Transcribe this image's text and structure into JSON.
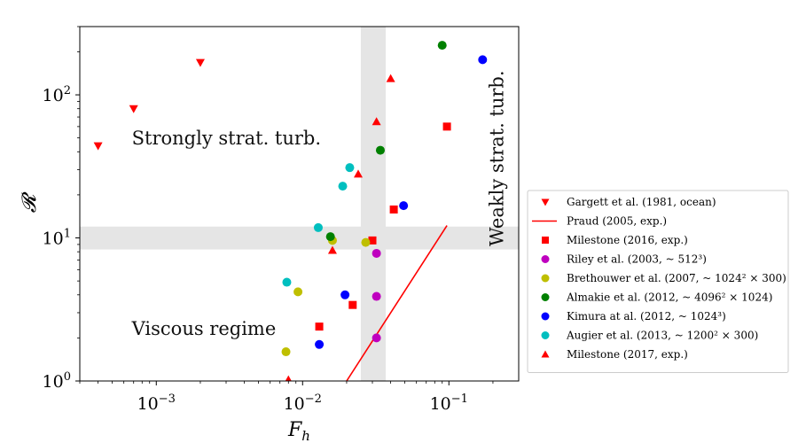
{
  "chart_data": {
    "type": "scatter",
    "xlabel": "F_h",
    "ylabel": "𝓡",
    "xscale": "log",
    "yscale": "log",
    "xlim": [
      0.0003,
      0.3
    ],
    "ylim": [
      1,
      300
    ],
    "x_ticks": [
      {
        "value": 0.001,
        "base": "10",
        "exp": "−3"
      },
      {
        "value": 0.01,
        "base": "10",
        "exp": "−2"
      },
      {
        "value": 0.1,
        "base": "10",
        "exp": "−1"
      }
    ],
    "y_ticks": [
      {
        "value": 1,
        "base": "10",
        "exp": "0"
      },
      {
        "value": 10,
        "base": "10",
        "exp": "1"
      },
      {
        "value": 100,
        "base": "10",
        "exp": "2"
      }
    ],
    "shaded_bands": [
      {
        "orientation": "vertical",
        "range": [
          0.025,
          0.037
        ]
      },
      {
        "orientation": "horizontal",
        "range": [
          8.3,
          12
        ]
      }
    ],
    "annotations": [
      {
        "text": "Strongly strat. turb.",
        "x": 0.00068,
        "y": 45,
        "rotation": 0
      },
      {
        "text": "Viscous regime",
        "x": 0.00068,
        "y": 2.1,
        "rotation": 0
      },
      {
        "text": "Weakly strat. turb.",
        "x": 0.235,
        "y": 36,
        "rotation": -90
      }
    ],
    "legend_position": "outside-right",
    "series": [
      {
        "name": "Gargett et al. (1981, ocean)",
        "color": "#ff0000",
        "marker": "triangle-down",
        "points": [
          [
            0.0004,
            44
          ],
          [
            0.0007,
            80
          ],
          [
            0.002,
            168
          ]
        ]
      },
      {
        "name": "Praud (2005, exp.)",
        "color": "#ff0000",
        "marker": "line",
        "points": [
          [
            0.02,
            1
          ],
          [
            0.097,
            12.2
          ]
        ]
      },
      {
        "name": "Milestone (2016, exp.)",
        "color": "#ff0000",
        "marker": "square",
        "points": [
          [
            0.013,
            2.4
          ],
          [
            0.022,
            3.4
          ],
          [
            0.03,
            9.6
          ],
          [
            0.042,
            15.8
          ],
          [
            0.097,
            60
          ]
        ]
      },
      {
        "name": "Riley et al. (2003, ~ 512³)",
        "color": "#bf00bf",
        "marker": "circle",
        "points": [
          [
            0.032,
            2.0
          ],
          [
            0.032,
            3.9
          ],
          [
            0.032,
            7.8
          ]
        ]
      },
      {
        "name": "Brethouwer et al. (2007, ~ 1024² × 300)",
        "color": "#bfbf00",
        "marker": "circle",
        "points": [
          [
            0.0077,
            1.6
          ],
          [
            0.0093,
            4.2
          ],
          [
            0.016,
            9.6
          ],
          [
            0.027,
            9.3
          ]
        ]
      },
      {
        "name": "Almakie et al. (2012, ~ 4096² × 1024)",
        "color": "#008000",
        "marker": "circle",
        "points": [
          [
            0.0155,
            10.2
          ],
          [
            0.034,
            41
          ],
          [
            0.09,
            222
          ]
        ]
      },
      {
        "name": "Kimura at al. (2012, ~ 1024³)",
        "color": "#0000ff",
        "marker": "circle",
        "points": [
          [
            0.013,
            1.8
          ],
          [
            0.0195,
            4.0
          ],
          [
            0.049,
            16.8
          ],
          [
            0.17,
            176
          ]
        ]
      },
      {
        "name": "Augier et al. (2013, ~ 1200² × 300)",
        "color": "#00bfbf",
        "marker": "circle",
        "points": [
          [
            0.0078,
            4.9
          ],
          [
            0.0128,
            11.8
          ],
          [
            0.0188,
            23
          ],
          [
            0.021,
            31
          ]
        ]
      },
      {
        "name": "Milestone (2017, exp.)",
        "color": "#ff0000",
        "marker": "triangle-up",
        "points": [
          [
            0.008,
            1.02
          ],
          [
            0.016,
            8.2
          ],
          [
            0.024,
            28
          ],
          [
            0.032,
            65
          ],
          [
            0.04,
            130
          ]
        ]
      }
    ]
  }
}
